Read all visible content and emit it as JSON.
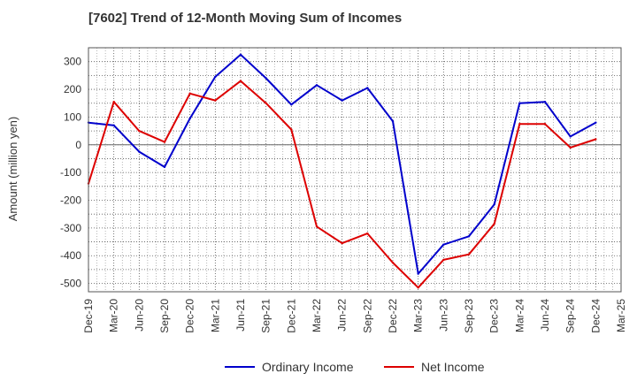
{
  "chart_data": {
    "type": "line",
    "title": "[7602]  Trend of 12-Month Moving Sum of Incomes",
    "ylabel": "Amount (million yen)",
    "xlabel": "",
    "ylim": [
      -530,
      350
    ],
    "yticks": [
      300,
      200,
      100,
      0,
      -100,
      -200,
      -300,
      -400,
      -500
    ],
    "categories": [
      "Dec-19",
      "Mar-20",
      "Jun-20",
      "Sep-20",
      "Dec-20",
      "Mar-21",
      "Jun-21",
      "Sep-21",
      "Dec-21",
      "Mar-22",
      "Jun-22",
      "Sep-22",
      "Dec-22",
      "Mar-23",
      "Jun-23",
      "Sep-23",
      "Dec-23",
      "Mar-24",
      "Jun-24",
      "Sep-24",
      "Dec-24",
      "Mar-25"
    ],
    "series": [
      {
        "name": "Ordinary Income",
        "color": "#0000cc",
        "values": [
          80,
          70,
          -25,
          -80,
          95,
          245,
          325,
          240,
          145,
          215,
          160,
          205,
          85,
          -465,
          -360,
          -330,
          -215,
          150,
          155,
          30,
          80,
          null
        ]
      },
      {
        "name": "Net Income",
        "color": "#dd0000",
        "values": [
          -140,
          155,
          50,
          10,
          185,
          160,
          230,
          150,
          55,
          -295,
          -355,
          -320,
          -425,
          -515,
          -415,
          -395,
          -285,
          75,
          75,
          -10,
          20,
          null
        ]
      }
    ],
    "grid": true,
    "legend_position": "bottom"
  }
}
